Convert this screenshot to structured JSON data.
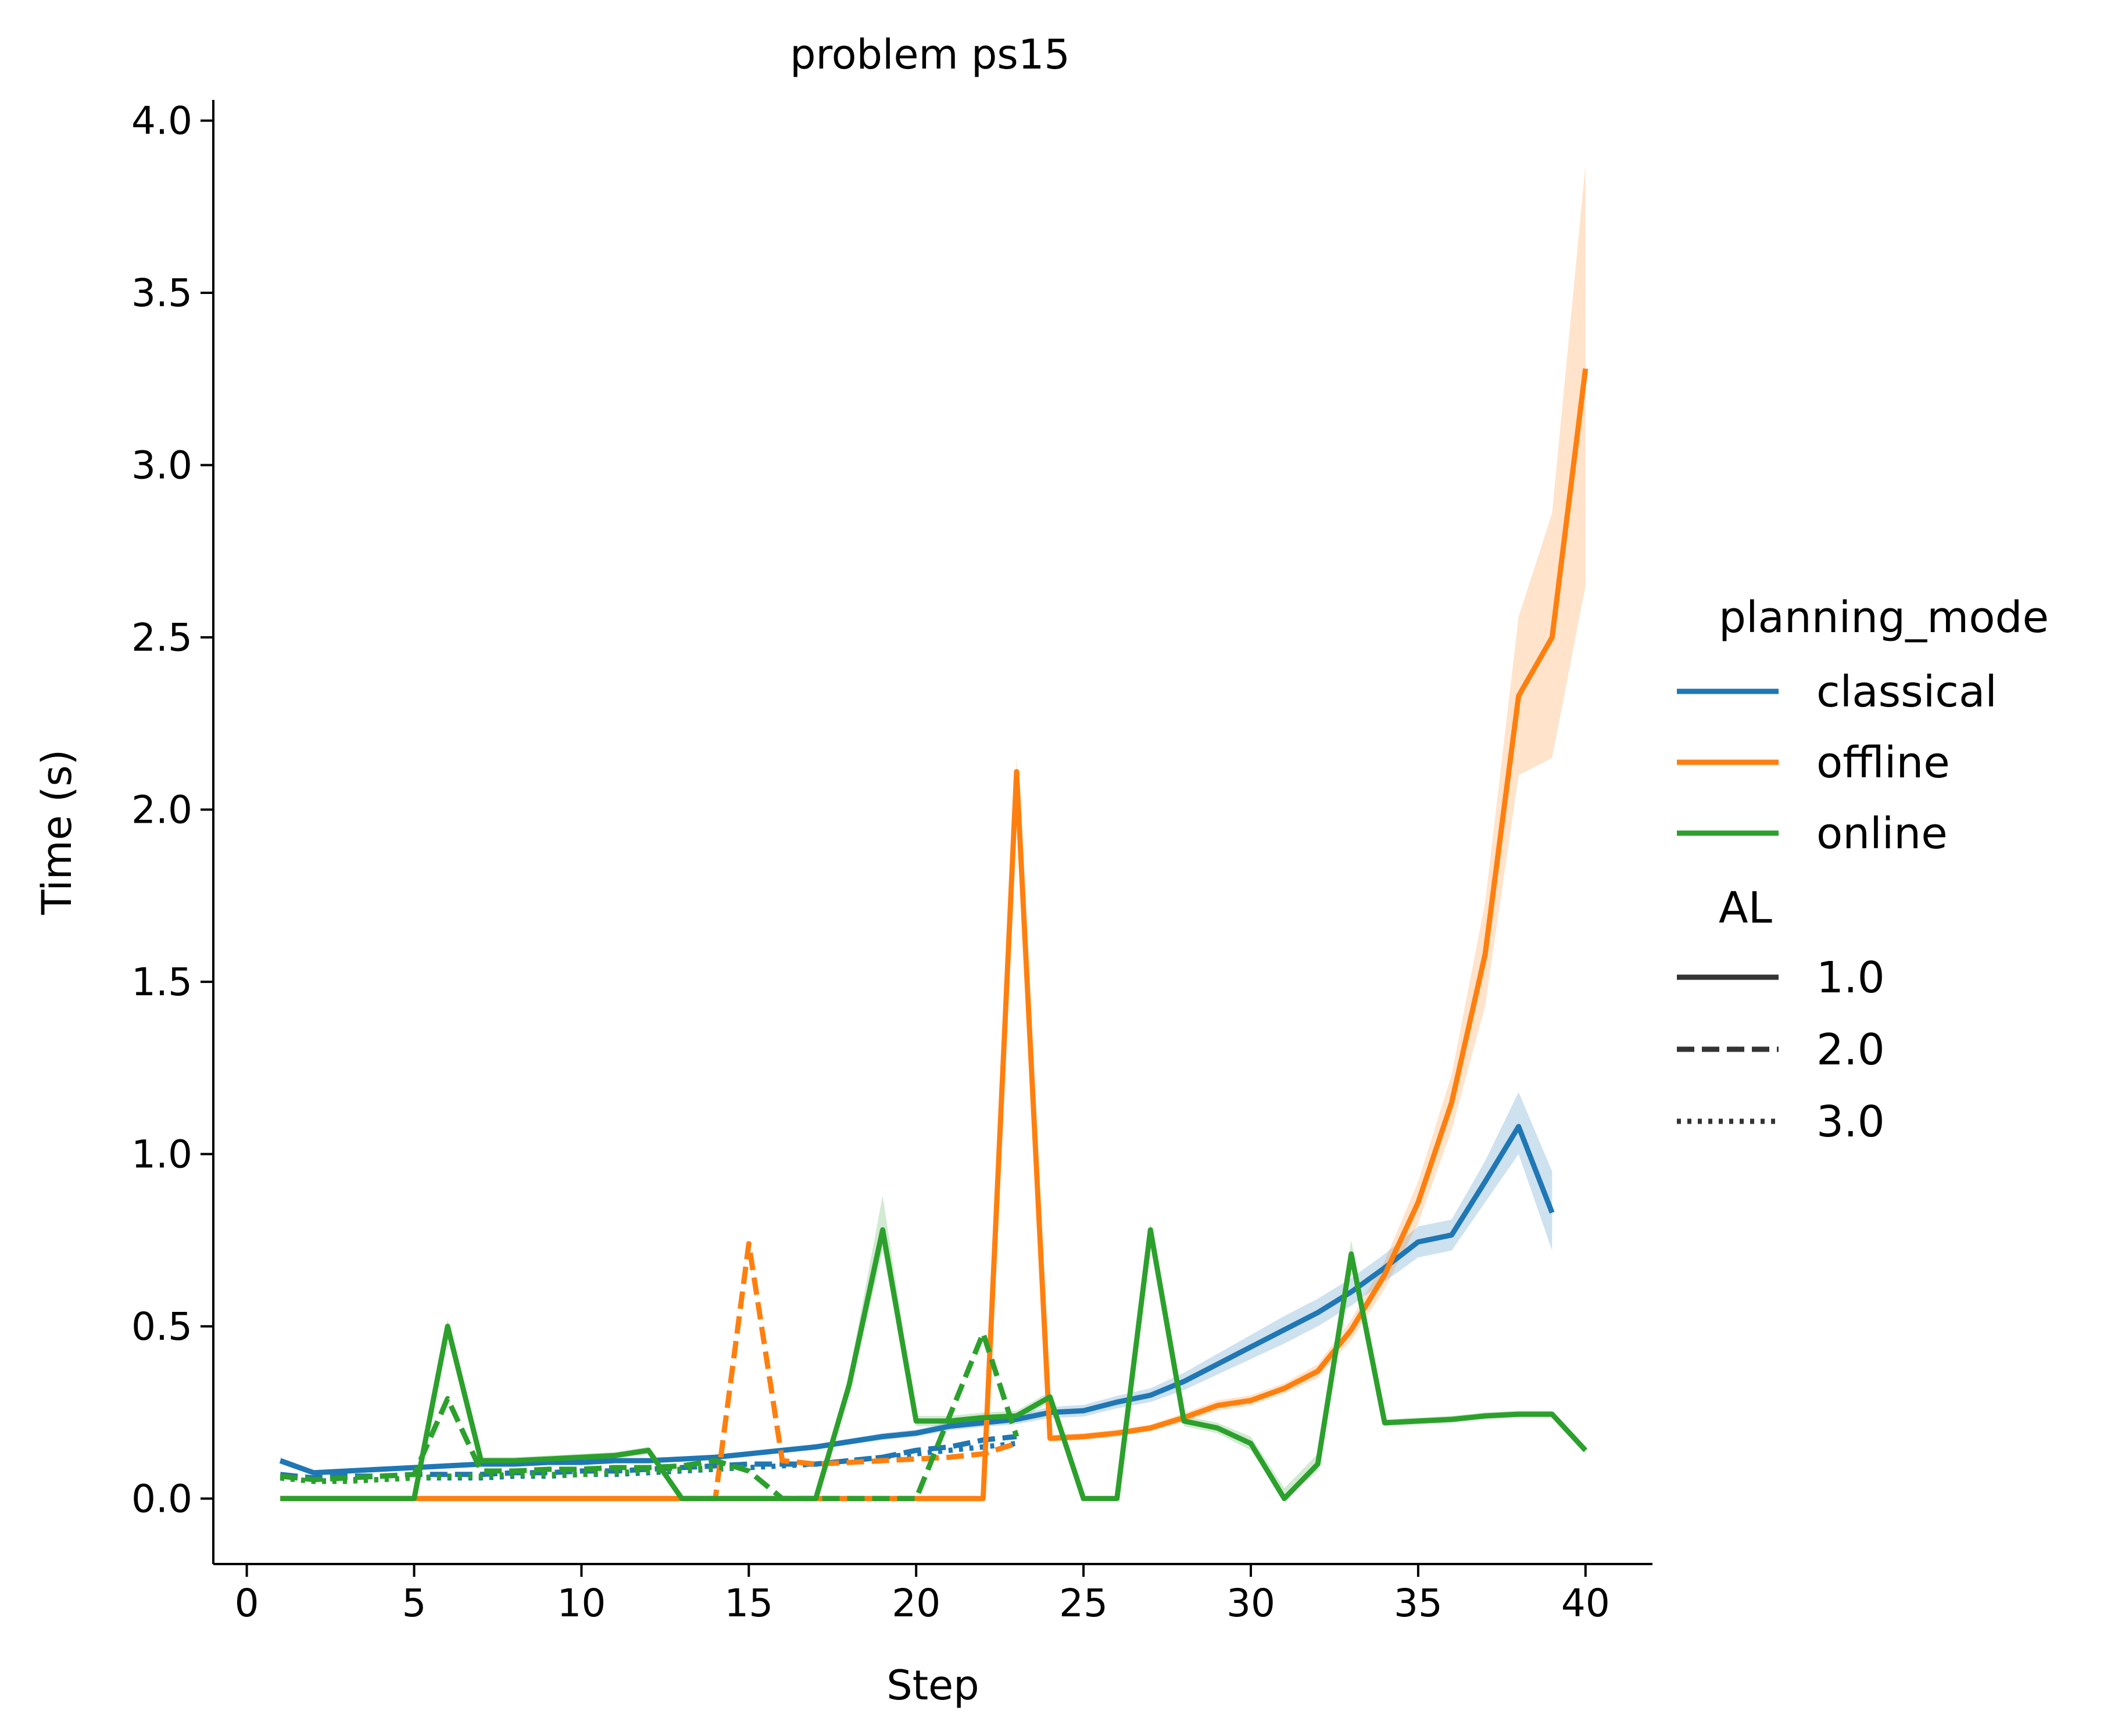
{
  "chart_data": {
    "type": "line",
    "title": "problem ps15",
    "xlabel": "Step",
    "ylabel": "Time (s)",
    "xlim": [
      -1,
      42
    ],
    "ylim": [
      -0.19,
      4.06
    ],
    "xticks": [
      0,
      5,
      10,
      15,
      20,
      25,
      30,
      35,
      40
    ],
    "xtick_labels": [
      "0",
      "5",
      "10",
      "15",
      "20",
      "25",
      "30",
      "35",
      "40"
    ],
    "yticks": [
      0.0,
      0.5,
      1.0,
      1.5,
      2.0,
      2.5,
      3.0,
      3.5,
      4.0
    ],
    "ytick_labels": [
      "0.0",
      "0.5",
      "1.0",
      "1.5",
      "2.0",
      "2.5",
      "3.0",
      "3.5",
      "4.0"
    ],
    "grid": false,
    "legend": {
      "placement": "right",
      "hue_title": "planning_mode",
      "hue_entries": [
        {
          "label": "classical",
          "color": "#1f77b4"
        },
        {
          "label": "offline",
          "color": "#ff7f0e"
        },
        {
          "label": "online",
          "color": "#2ca02c"
        }
      ],
      "style_title": "AL",
      "style_entries": [
        {
          "label": "1.0",
          "dash": "solid"
        },
        {
          "label": "2.0",
          "dash": "dashed"
        },
        {
          "label": "3.0",
          "dash": "dotted"
        }
      ]
    },
    "series": [
      {
        "hue": "classical",
        "AL": "3.0",
        "color": "#1f77b4",
        "dash": "dotted",
        "x": [
          1,
          2,
          3,
          4,
          5,
          6,
          7,
          8,
          9,
          10,
          11,
          12,
          13,
          14,
          15,
          16,
          17,
          18,
          19,
          20,
          21,
          22,
          23
        ],
        "y": [
          0.06,
          0.05,
          0.055,
          0.055,
          0.06,
          0.06,
          0.06,
          0.065,
          0.065,
          0.07,
          0.07,
          0.075,
          0.08,
          0.085,
          0.09,
          0.095,
          0.1,
          0.11,
          0.12,
          0.13,
          0.14,
          0.15,
          0.16
        ]
      },
      {
        "hue": "classical",
        "AL": "2.0",
        "color": "#1f77b4",
        "dash": "dashed",
        "x": [
          1,
          2,
          3,
          4,
          5,
          6,
          7,
          8,
          9,
          10,
          11,
          12,
          13,
          14,
          15,
          16,
          17,
          18,
          19,
          20,
          21,
          22,
          23
        ],
        "y": [
          0.07,
          0.06,
          0.065,
          0.065,
          0.07,
          0.07,
          0.07,
          0.075,
          0.075,
          0.08,
          0.08,
          0.085,
          0.09,
          0.095,
          0.1,
          0.1,
          0.1,
          0.11,
          0.12,
          0.14,
          0.15,
          0.17,
          0.18
        ]
      },
      {
        "hue": "classical",
        "AL": "1.0",
        "color": "#1f77b4",
        "dash": "solid",
        "x": [
          1,
          2,
          3,
          4,
          5,
          6,
          7,
          8,
          9,
          10,
          11,
          12,
          13,
          14,
          15,
          16,
          17,
          18,
          19,
          20,
          21,
          22,
          23,
          24,
          25,
          26,
          27,
          28,
          29,
          30,
          31,
          32,
          33,
          34,
          35,
          36,
          37,
          38,
          39
        ],
        "y": [
          0.11,
          0.075,
          0.08,
          0.085,
          0.09,
          0.095,
          0.1,
          0.1,
          0.105,
          0.105,
          0.11,
          0.11,
          0.115,
          0.12,
          0.13,
          0.14,
          0.15,
          0.165,
          0.18,
          0.19,
          0.21,
          0.22,
          0.23,
          0.25,
          0.255,
          0.28,
          0.3,
          0.34,
          0.39,
          0.44,
          0.49,
          0.54,
          0.6,
          0.67,
          0.745,
          0.765,
          0.92,
          1.08,
          0.83
        ],
        "band_lo": [
          0.1,
          0.068,
          0.072,
          0.078,
          0.083,
          0.088,
          0.093,
          0.093,
          0.098,
          0.098,
          0.103,
          0.103,
          0.108,
          0.113,
          0.122,
          0.132,
          0.142,
          0.156,
          0.17,
          0.18,
          0.198,
          0.208,
          0.216,
          0.234,
          0.238,
          0.262,
          0.28,
          0.315,
          0.36,
          0.405,
          0.45,
          0.5,
          0.56,
          0.63,
          0.7,
          0.72,
          0.86,
          1.0,
          0.72
        ],
        "band_hi": [
          0.12,
          0.082,
          0.088,
          0.092,
          0.097,
          0.102,
          0.107,
          0.107,
          0.112,
          0.112,
          0.117,
          0.117,
          0.122,
          0.127,
          0.138,
          0.148,
          0.158,
          0.174,
          0.19,
          0.2,
          0.222,
          0.232,
          0.244,
          0.266,
          0.272,
          0.298,
          0.32,
          0.365,
          0.42,
          0.475,
          0.53,
          0.58,
          0.64,
          0.71,
          0.79,
          0.81,
          0.98,
          1.18,
          0.95
        ]
      },
      {
        "hue": "offline",
        "AL": "2.0",
        "color": "#ff7f0e",
        "dash": "dashed",
        "x": [
          13,
          14,
          15,
          16,
          17,
          18,
          19,
          20,
          21,
          22,
          23
        ],
        "y": [
          0.0,
          0.0,
          0.74,
          0.11,
          0.1,
          0.105,
          0.11,
          0.115,
          0.12,
          0.13,
          0.16
        ]
      },
      {
        "hue": "offline",
        "AL": "1.0",
        "color": "#ff7f0e",
        "dash": "solid",
        "x": [
          1,
          2,
          3,
          4,
          5,
          6,
          7,
          8,
          9,
          10,
          11,
          12,
          13,
          14,
          15,
          16,
          17,
          18,
          19,
          20,
          21,
          22,
          23,
          24,
          25,
          26,
          27,
          28,
          29,
          30,
          31,
          32,
          33,
          34,
          35,
          36,
          37,
          38,
          39,
          40
        ],
        "y": [
          0,
          0,
          0,
          0,
          0,
          0,
          0,
          0,
          0,
          0,
          0,
          0,
          0,
          0,
          0,
          0,
          0,
          0,
          0,
          0,
          0,
          0,
          2.11,
          0.175,
          0.18,
          0.19,
          0.205,
          0.235,
          0.27,
          0.285,
          0.32,
          0.37,
          0.49,
          0.65,
          0.86,
          1.15,
          1.58,
          2.33,
          2.5,
          3.28
        ],
        "band_lo": [
          0,
          0,
          0,
          0,
          0,
          0,
          0,
          0,
          0,
          0,
          0,
          0,
          0,
          0,
          0,
          0,
          0,
          0,
          0,
          0,
          0,
          0,
          2.07,
          0.165,
          0.17,
          0.18,
          0.195,
          0.222,
          0.255,
          0.27,
          0.305,
          0.35,
          0.46,
          0.61,
          0.8,
          1.07,
          1.43,
          2.1,
          2.15,
          2.65
        ],
        "band_hi": [
          0,
          0,
          0,
          0,
          0,
          0,
          0,
          0,
          0,
          0,
          0,
          0,
          0,
          0,
          0,
          0,
          0,
          0,
          0,
          0,
          0,
          0,
          2.15,
          0.185,
          0.19,
          0.2,
          0.215,
          0.248,
          0.285,
          0.3,
          0.335,
          0.39,
          0.52,
          0.69,
          0.92,
          1.23,
          1.73,
          2.56,
          2.86,
          3.87
        ]
      },
      {
        "hue": "online",
        "AL": "3.0",
        "color": "#2ca02c",
        "dash": "dotted",
        "x": [
          1,
          2,
          3,
          4,
          5,
          6,
          7,
          8,
          9,
          10,
          11,
          12,
          13,
          14,
          15
        ],
        "y": [
          0.06,
          0.05,
          0.05,
          0.055,
          0.06,
          0.065,
          0.065,
          0.07,
          0.07,
          0.07,
          0.075,
          0.08,
          0.085,
          0.09,
          0.09
        ]
      },
      {
        "hue": "online",
        "AL": "2.0",
        "color": "#2ca02c",
        "dash": "dashed",
        "x": [
          1,
          2,
          3,
          4,
          5,
          6,
          7,
          8,
          9,
          10,
          11,
          12,
          13,
          14,
          15,
          16,
          17,
          18,
          19,
          20,
          21,
          22,
          23
        ],
        "y": [
          0.065,
          0.055,
          0.06,
          0.065,
          0.07,
          0.29,
          0.08,
          0.08,
          0.085,
          0.085,
          0.09,
          0.09,
          0.095,
          0.11,
          0.08,
          0.0,
          0.0,
          0.0,
          0.0,
          0.0,
          0.24,
          0.48,
          0.18
        ]
      },
      {
        "hue": "online",
        "AL": "1.0",
        "color": "#2ca02c",
        "dash": "solid",
        "x": [
          1,
          2,
          3,
          4,
          5,
          6,
          7,
          8,
          9,
          10,
          11,
          12,
          13,
          14,
          15,
          16,
          17,
          18,
          19,
          20,
          21,
          22,
          23,
          24,
          25,
          26,
          27,
          28,
          29,
          30,
          31,
          32,
          33,
          34,
          35,
          36,
          37,
          38,
          39,
          40
        ],
        "y": [
          0,
          0,
          0,
          0,
          0,
          0.5,
          0.11,
          0.11,
          0.115,
          0.12,
          0.125,
          0.14,
          0.0,
          0.0,
          0.0,
          0.0,
          0.0,
          0.33,
          0.78,
          0.225,
          0.225,
          0.235,
          0.24,
          0.295,
          0.0,
          0.0,
          0.78,
          0.225,
          0.205,
          0.16,
          0.0,
          0.1,
          0.71,
          0.22,
          0.225,
          0.23,
          0.24,
          0.245,
          0.245,
          0.14
        ],
        "band_lo": [
          0,
          0,
          0,
          0,
          0,
          0.48,
          0.1,
          0.1,
          0.105,
          0.11,
          0.115,
          0.13,
          0.0,
          0.0,
          0.0,
          0.0,
          0.0,
          0.3,
          0.72,
          0.21,
          0.21,
          0.22,
          0.225,
          0.28,
          0.0,
          0.0,
          0.76,
          0.21,
          0.19,
          0.14,
          0.0,
          0.08,
          0.67,
          0.21,
          0.215,
          0.22,
          0.23,
          0.235,
          0.235,
          0.13
        ],
        "band_hi": [
          0,
          0,
          0,
          0,
          0,
          0.52,
          0.12,
          0.12,
          0.125,
          0.13,
          0.135,
          0.15,
          0.0,
          0.0,
          0.0,
          0.0,
          0.0,
          0.36,
          0.88,
          0.24,
          0.24,
          0.25,
          0.255,
          0.31,
          0.0,
          0.0,
          0.8,
          0.24,
          0.22,
          0.18,
          0.03,
          0.13,
          0.75,
          0.23,
          0.235,
          0.24,
          0.25,
          0.255,
          0.255,
          0.15
        ]
      }
    ]
  }
}
